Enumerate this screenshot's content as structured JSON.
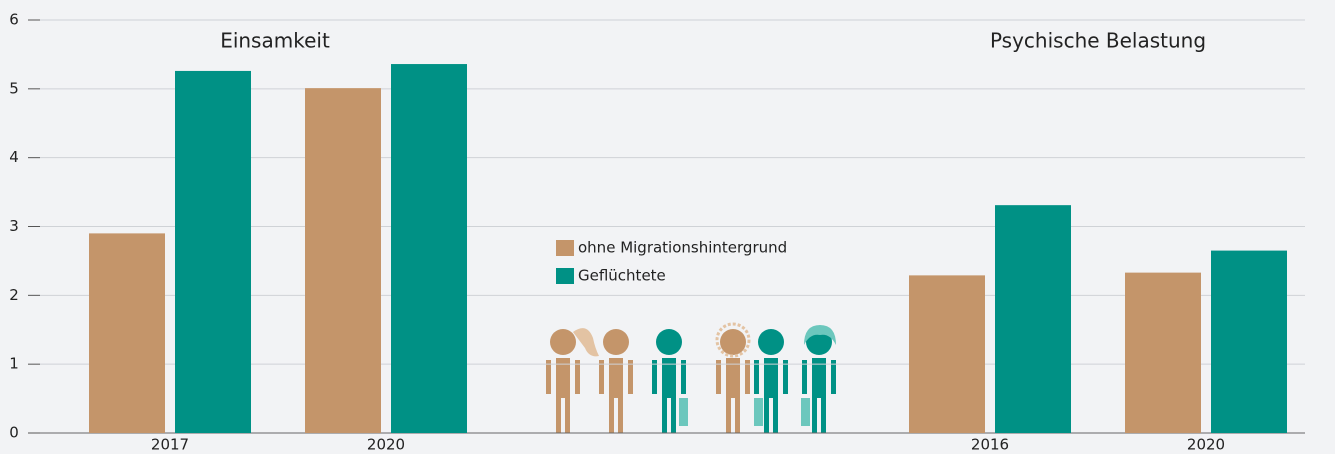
{
  "chart_data": {
    "type": "bar",
    "ylim": [
      0,
      6
    ],
    "yticks": [
      0,
      1,
      2,
      3,
      4,
      5,
      6
    ],
    "grid": true,
    "legend": [
      {
        "name": "ohne Migrationshintergrund",
        "color": "#c4956a"
      },
      {
        "name": "Geflüchtete",
        "color": "#009185"
      }
    ],
    "panels": [
      {
        "title": "Einsamkeit",
        "categories": [
          "2017",
          "2020"
        ],
        "series": [
          {
            "values": [
              2.9,
              5.01
            ]
          },
          {
            "values": [
              5.26,
              5.36
            ]
          }
        ]
      },
      {
        "title": "Psychische Belastung",
        "categories": [
          "2016",
          "2020"
        ],
        "series": [
          {
            "values": [
              2.29,
              2.33
            ]
          },
          {
            "values": [
              3.31,
              2.65
            ]
          }
        ]
      }
    ]
  }
}
